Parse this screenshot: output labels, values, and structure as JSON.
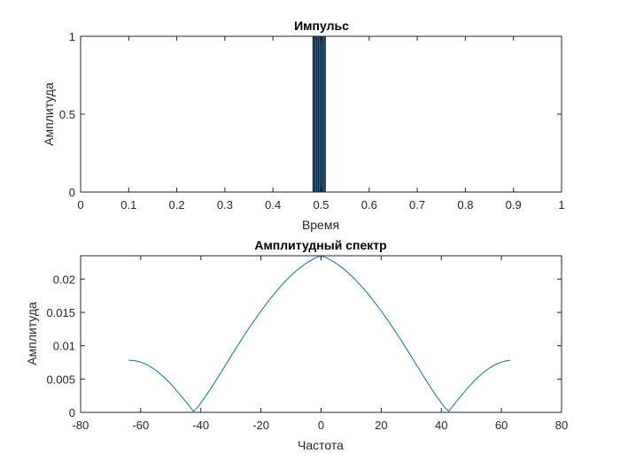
{
  "chart_data": [
    {
      "type": "bar",
      "title": "Импульс",
      "xlabel": "Время",
      "ylabel": "Амплитуда",
      "xlim": [
        0,
        1
      ],
      "ylim": [
        0,
        1
      ],
      "xticks": [
        0,
        0.1,
        0.2,
        0.3,
        0.4,
        0.5,
        0.6,
        0.7,
        0.8,
        0.9,
        1
      ],
      "xtick_labels": [
        "0",
        "0.1",
        "0.2",
        "0.3",
        "0.4",
        "0.5",
        "0.6",
        "0.7",
        "0.8",
        "0.9",
        "1"
      ],
      "yticks": [
        0,
        0.5,
        1
      ],
      "ytick_labels": [
        "0",
        "0.5",
        "1"
      ],
      "bars": [
        {
          "x": 0.4855,
          "width": 0.0045,
          "value": 1
        },
        {
          "x": 0.4925,
          "width": 0.0045,
          "value": 1
        },
        {
          "x": 0.4995,
          "width": 0.0045,
          "value": 1
        },
        {
          "x": 0.5065,
          "width": 0.0045,
          "value": 1
        }
      ],
      "color": "#0072BD",
      "grid": false
    },
    {
      "type": "line",
      "title": "Амплитудный спектр",
      "xlabel": "Частота",
      "ylabel": "Амплитуда",
      "xlim": [
        -80,
        80
      ],
      "ylim": [
        0,
        0.0235
      ],
      "xticks": [
        -80,
        -60,
        -40,
        -20,
        0,
        20,
        40,
        60,
        80
      ],
      "xtick_labels": [
        "-80",
        "-60",
        "-40",
        "-20",
        "0",
        "20",
        "40",
        "60",
        "80"
      ],
      "yticks": [
        0,
        0.005,
        0.01,
        0.015,
        0.02
      ],
      "ytick_labels": [
        "0",
        "0.005",
        "0.01",
        "0.015",
        "0.02"
      ],
      "x": [
        -64,
        -62,
        -60,
        -58,
        -56,
        -54,
        -52,
        -50,
        -48,
        -46,
        -44,
        -42.5,
        -41,
        -38,
        -35,
        -32,
        -29,
        -26,
        -23,
        -20,
        -17,
        -14,
        -11,
        -8,
        -5,
        -2,
        0,
        2,
        5,
        8,
        11,
        14,
        17,
        20,
        23,
        26,
        29,
        32,
        35,
        38,
        41,
        42.5,
        44,
        46,
        48,
        50,
        52,
        54,
        56,
        58,
        60,
        62,
        63
      ],
      "values": [
        0.00782,
        0.00777,
        0.00754,
        0.00717,
        0.00665,
        0.00598,
        0.00518,
        0.00427,
        0.00325,
        0.00217,
        0.00106,
        0.00015,
        0.0008,
        0.00268,
        0.00476,
        0.00694,
        0.00912,
        0.01125,
        0.0133,
        0.0152,
        0.017,
        0.01865,
        0.0201,
        0.02135,
        0.02237,
        0.02316,
        0.0235,
        0.02316,
        0.02237,
        0.02135,
        0.0201,
        0.01865,
        0.017,
        0.0152,
        0.0133,
        0.01125,
        0.00912,
        0.00694,
        0.00476,
        0.00268,
        0.0008,
        0.00015,
        0.00106,
        0.00217,
        0.00325,
        0.00427,
        0.00518,
        0.00598,
        0.00665,
        0.00717,
        0.00754,
        0.00777,
        0.00782
      ],
      "color": "#0072BD",
      "grid": false
    }
  ]
}
